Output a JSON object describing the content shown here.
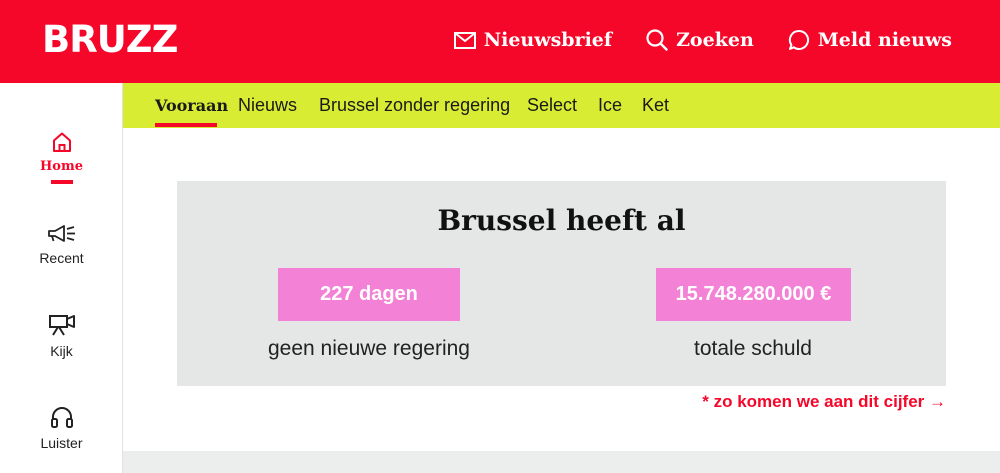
{
  "brand": {
    "logo_text": "BRUZZ",
    "accent_color": "#f5072a",
    "nav_bg": "#d9ec34",
    "pill_color": "#f382d6"
  },
  "header": {
    "actions": [
      {
        "label": "Nieuwsbrief",
        "icon": "mail-icon"
      },
      {
        "label": "Zoeken",
        "icon": "search-icon"
      },
      {
        "label": "Meld nieuws",
        "icon": "chat-bubble-icon"
      }
    ]
  },
  "sidebar": {
    "items": [
      {
        "label": "Home",
        "icon": "home-icon",
        "active": true
      },
      {
        "label": "Recent",
        "icon": "megaphone-icon"
      },
      {
        "label": "Kijk",
        "icon": "video-camera-icon"
      },
      {
        "label": "Luister",
        "icon": "headphones-icon"
      }
    ]
  },
  "nav": {
    "items": [
      {
        "label": "Vooraan",
        "active": true
      },
      {
        "label": "Nieuws"
      },
      {
        "label": "Brussel zonder regering"
      },
      {
        "label": "Select"
      },
      {
        "label": "Ice"
      },
      {
        "label": "Ket"
      }
    ]
  },
  "counter": {
    "title": "Brussel heeft al",
    "days_value": "227 dagen",
    "days_caption": "geen nieuwe regering",
    "debt_value": "15.748.280.000 €",
    "debt_caption": "totale schuld",
    "more_link": "* zo komen we aan dit cijfer →"
  }
}
